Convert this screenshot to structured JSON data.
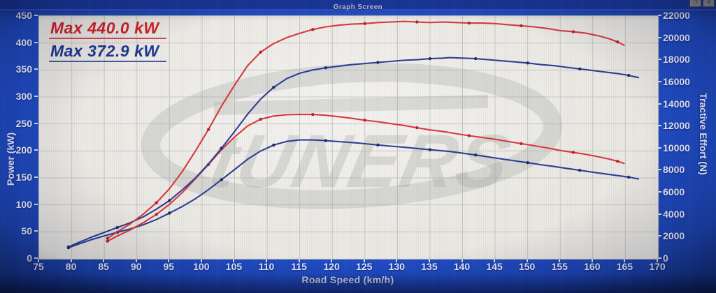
{
  "window": {
    "title": "Graph Screen",
    "buttons": [
      {
        "name": "restore",
        "glyph": "❐"
      },
      {
        "name": "close",
        "glyph": "✕"
      }
    ]
  },
  "legend": [
    {
      "label": "Max 440.0 kW",
      "color": "#cf2128"
    },
    {
      "label": "Max 372.9 kW",
      "color": "#1c348f"
    }
  ],
  "watermark": {
    "text": "tUNERS"
  },
  "colors": {
    "background_blue": "#2150cf",
    "titlebar_blue": "#1c3fae",
    "plot_background": "#eae8e2",
    "grid": "#c7c6c2",
    "red_curve": "#d8383b",
    "blue_curve": "#2b3e93",
    "watermark_gray": "#a3a6a1"
  },
  "chart_data": {
    "type": "line",
    "title": "Graph Screen",
    "grid": true,
    "legend_position": "top-left",
    "x_axis": {
      "label": "Road Speed (km/h)",
      "min": 75,
      "max": 170,
      "ticks": [
        75,
        80,
        85,
        90,
        95,
        100,
        105,
        110,
        115,
        120,
        125,
        130,
        135,
        140,
        145,
        150,
        155,
        160,
        165,
        170
      ]
    },
    "y_left": {
      "label": "Power (kW)",
      "min": 0,
      "max": 450,
      "ticks": [
        0,
        50,
        100,
        150,
        200,
        250,
        300,
        350,
        400,
        450
      ]
    },
    "y_right": {
      "label": "Tractive Effort (N)",
      "min": 0,
      "max": 22000,
      "ticks": [
        0,
        2000,
        4000,
        6000,
        8000,
        10000,
        12000,
        14000,
        16000,
        18000,
        20000,
        22000
      ]
    },
    "series": [
      {
        "name": "power-red",
        "axis": "left",
        "unit": "kW",
        "max": 440.0,
        "color": "#d8383b",
        "marker_color": "#b5232a",
        "points": [
          [
            85.5,
            38
          ],
          [
            87,
            50
          ],
          [
            89,
            65
          ],
          [
            91,
            83
          ],
          [
            93,
            104
          ],
          [
            95,
            130
          ],
          [
            97,
            162
          ],
          [
            99,
            200
          ],
          [
            101,
            240
          ],
          [
            103,
            283
          ],
          [
            105,
            322
          ],
          [
            107,
            358
          ],
          [
            109,
            383
          ],
          [
            111,
            399
          ],
          [
            113,
            410
          ],
          [
            115,
            418
          ],
          [
            117,
            425
          ],
          [
            119,
            430
          ],
          [
            121,
            433
          ],
          [
            123,
            435
          ],
          [
            125,
            436
          ],
          [
            127,
            438
          ],
          [
            129,
            439
          ],
          [
            131,
            440
          ],
          [
            133,
            439
          ],
          [
            135,
            438
          ],
          [
            137,
            439
          ],
          [
            139,
            438
          ],
          [
            141,
            437
          ],
          [
            143,
            437
          ],
          [
            145,
            436
          ],
          [
            147,
            434
          ],
          [
            149,
            432
          ],
          [
            151,
            430
          ],
          [
            153,
            427
          ],
          [
            155,
            423
          ],
          [
            157,
            421
          ],
          [
            159,
            418
          ],
          [
            161,
            413
          ],
          [
            162.5,
            408
          ],
          [
            163.8,
            402
          ],
          [
            164.8,
            396
          ]
        ]
      },
      {
        "name": "power-blue",
        "axis": "left",
        "unit": "kW",
        "max": 372.9,
        "color": "#2b3e93",
        "marker_color": "#1a2a6e",
        "points": [
          [
            79.5,
            22
          ],
          [
            81,
            30
          ],
          [
            83,
            40
          ],
          [
            85,
            49
          ],
          [
            87,
            58
          ],
          [
            89,
            67
          ],
          [
            91,
            78
          ],
          [
            93,
            92
          ],
          [
            95,
            108
          ],
          [
            97,
            128
          ],
          [
            99,
            150
          ],
          [
            101,
            176
          ],
          [
            103,
            205
          ],
          [
            105,
            236
          ],
          [
            107,
            268
          ],
          [
            109,
            296
          ],
          [
            111,
            318
          ],
          [
            113,
            334
          ],
          [
            115,
            344
          ],
          [
            117,
            350
          ],
          [
            119,
            354
          ],
          [
            121,
            357
          ],
          [
            123,
            360
          ],
          [
            125,
            362
          ],
          [
            127,
            364
          ],
          [
            129,
            366
          ],
          [
            131,
            368
          ],
          [
            133,
            369
          ],
          [
            135,
            371
          ],
          [
            137,
            372
          ],
          [
            138,
            372.9
          ],
          [
            140,
            372
          ],
          [
            142,
            371
          ],
          [
            144,
            369
          ],
          [
            146,
            367
          ],
          [
            148,
            365
          ],
          [
            150,
            363
          ],
          [
            152,
            360
          ],
          [
            154,
            358
          ],
          [
            156,
            355
          ],
          [
            158,
            352
          ],
          [
            160,
            349
          ],
          [
            162,
            346
          ],
          [
            164,
            343
          ],
          [
            165.5,
            340
          ],
          [
            167,
            336
          ]
        ]
      },
      {
        "name": "tractive-red",
        "axis": "right",
        "unit": "N",
        "max": 13090,
        "color": "#d8383b",
        "marker_color": "#b5232a",
        "points": [
          [
            85.5,
            1600
          ],
          [
            87,
            2070
          ],
          [
            89,
            2630
          ],
          [
            91,
            3280
          ],
          [
            93,
            4030
          ],
          [
            95,
            4930
          ],
          [
            97,
            6010
          ],
          [
            99,
            7270
          ],
          [
            101,
            8550
          ],
          [
            103,
            9890
          ],
          [
            105,
            11040
          ],
          [
            107,
            12040
          ],
          [
            109,
            12650
          ],
          [
            111,
            12940
          ],
          [
            113,
            13060
          ],
          [
            115,
            13090
          ],
          [
            117,
            13080
          ],
          [
            119,
            13010
          ],
          [
            121,
            12880
          ],
          [
            123,
            12730
          ],
          [
            125,
            12560
          ],
          [
            127,
            12420
          ],
          [
            129,
            12250
          ],
          [
            131,
            12090
          ],
          [
            133,
            11880
          ],
          [
            135,
            11680
          ],
          [
            137,
            11540
          ],
          [
            139,
            11340
          ],
          [
            141,
            11160
          ],
          [
            143,
            11000
          ],
          [
            145,
            10830
          ],
          [
            147,
            10630
          ],
          [
            149,
            10440
          ],
          [
            151,
            10250
          ],
          [
            153,
            10050
          ],
          [
            155,
            9820
          ],
          [
            157,
            9650
          ],
          [
            159,
            9460
          ],
          [
            161,
            9230
          ],
          [
            162.5,
            9040
          ],
          [
            163.8,
            8840
          ],
          [
            164.8,
            8650
          ]
        ]
      },
      {
        "name": "tractive-blue",
        "axis": "right",
        "unit": "N",
        "max": 10770,
        "color": "#2b3e93",
        "marker_color": "#1a2a6e",
        "points": [
          [
            79.5,
            1000
          ],
          [
            81,
            1330
          ],
          [
            83,
            1730
          ],
          [
            85,
            2080
          ],
          [
            87,
            2400
          ],
          [
            89,
            2710
          ],
          [
            91,
            3090
          ],
          [
            93,
            3560
          ],
          [
            95,
            4140
          ],
          [
            97,
            4750
          ],
          [
            99,
            5450
          ],
          [
            101,
            6270
          ],
          [
            103,
            7170
          ],
          [
            105,
            8090
          ],
          [
            107,
            9020
          ],
          [
            109,
            9770
          ],
          [
            111,
            10310
          ],
          [
            113,
            10640
          ],
          [
            115,
            10770
          ],
          [
            117,
            10770
          ],
          [
            119,
            10710
          ],
          [
            121,
            10620
          ],
          [
            123,
            10540
          ],
          [
            125,
            10430
          ],
          [
            127,
            10320
          ],
          [
            129,
            10210
          ],
          [
            131,
            10110
          ],
          [
            133,
            10000
          ],
          [
            135,
            9890
          ],
          [
            137,
            9780
          ],
          [
            138,
            9730
          ],
          [
            140,
            9570
          ],
          [
            142,
            9410
          ],
          [
            144,
            9230
          ],
          [
            146,
            9050
          ],
          [
            148,
            8880
          ],
          [
            150,
            8710
          ],
          [
            152,
            8530
          ],
          [
            154,
            8370
          ],
          [
            156,
            8190
          ],
          [
            158,
            8020
          ],
          [
            160,
            7850
          ],
          [
            162,
            7690
          ],
          [
            164,
            7530
          ],
          [
            165.5,
            7400
          ],
          [
            167,
            7240
          ]
        ]
      }
    ]
  }
}
